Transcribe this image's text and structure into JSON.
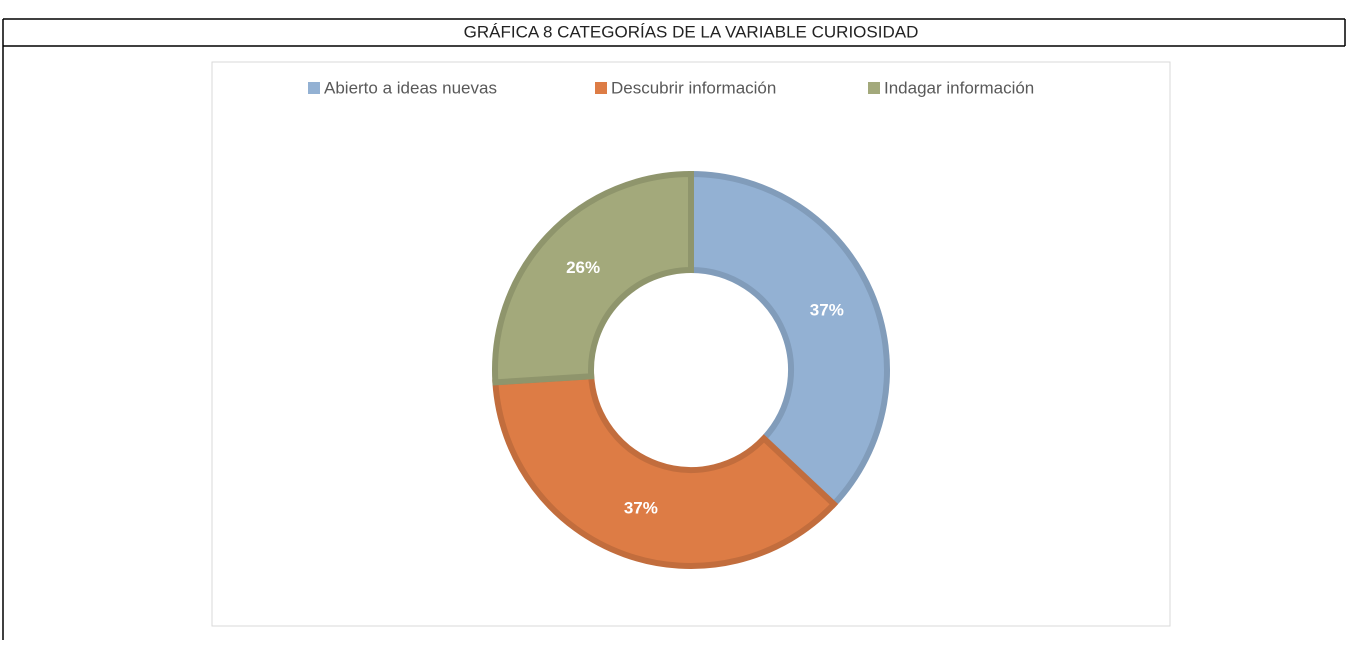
{
  "chart_data": {
    "type": "donut",
    "title": "GRÁFICA 8 CATEGORÍAS DE LA VARIABLE CURIOSIDAD",
    "categories": [
      "Abierto a ideas nuevas",
      "Descubrir información",
      "Indagar información"
    ],
    "values": [
      37,
      37,
      26
    ],
    "value_labels": [
      "37%",
      "37%",
      "26%"
    ],
    "colors": [
      "#93b1d3",
      "#dd7c45",
      "#a3a97b"
    ],
    "legend": "top"
  }
}
